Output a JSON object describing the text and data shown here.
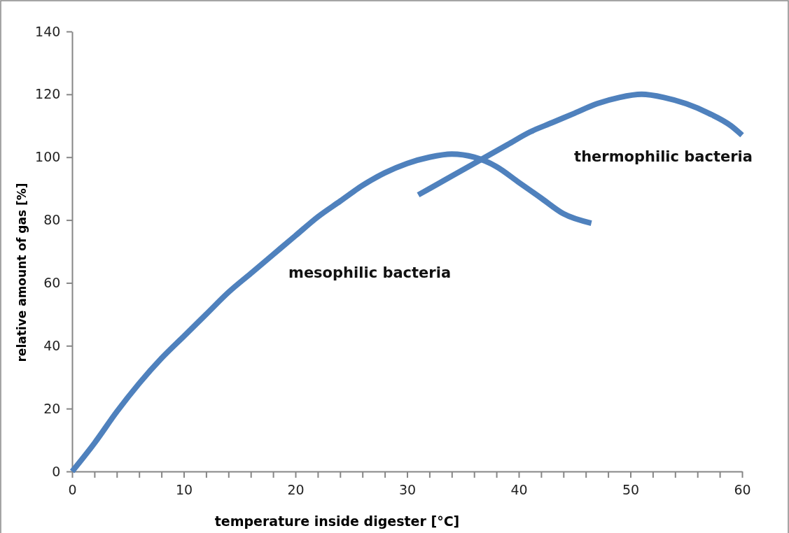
{
  "chart_data": {
    "type": "line",
    "xlabel": "temperature inside digester [°C]",
    "ylabel": "relative amount of gas [%]",
    "xlim": [
      0,
      60
    ],
    "ylim": [
      0,
      140
    ],
    "xticks": [
      0,
      {
        "value": 2,
        "label": null
      },
      {
        "value": 4,
        "label": null
      },
      {
        "value": 6,
        "label": null
      },
      {
        "value": 8,
        "label": null
      },
      10,
      {
        "value": 12,
        "label": null
      },
      {
        "value": 14,
        "label": null
      },
      {
        "value": 16,
        "label": null
      },
      {
        "value": 18,
        "label": null
      },
      20,
      {
        "value": 22,
        "label": null
      },
      {
        "value": 24,
        "label": null
      },
      {
        "value": 26,
        "label": null
      },
      {
        "value": 28,
        "label": null
      },
      30,
      {
        "value": 32,
        "label": null
      },
      {
        "value": 34,
        "label": null
      },
      {
        "value": 36,
        "label": null
      },
      {
        "value": 38,
        "label": null
      },
      40,
      {
        "value": 42,
        "label": null
      },
      {
        "value": 44,
        "label": null
      },
      {
        "value": 46,
        "label": null
      },
      {
        "value": 48,
        "label": null
      },
      50,
      {
        "value": 52,
        "label": null
      },
      {
        "value": 54,
        "label": null
      },
      {
        "value": 56,
        "label": null
      },
      {
        "value": 58,
        "label": null
      },
      60
    ],
    "yticks": [
      0,
      20,
      40,
      60,
      80,
      100,
      120,
      140
    ],
    "grid": false,
    "legend": false,
    "marker": "none",
    "line_style": "solid",
    "series": [
      {
        "name": "mesophilic bacteria",
        "color": "#4f81bd",
        "x": [
          0,
          2,
          4,
          6,
          8,
          10,
          12,
          14,
          16,
          18,
          20,
          22,
          24,
          26,
          28,
          30,
          32,
          34,
          36,
          38,
          40,
          42,
          44,
          46.5
        ],
        "values": [
          0,
          9,
          19,
          28,
          36,
          43,
          50,
          57,
          63,
          69,
          75,
          81,
          86,
          91,
          95,
          98,
          100,
          101,
          100,
          97,
          92,
          87,
          82,
          79
        ]
      },
      {
        "name": "thermophilic bacteria",
        "color": "#4f81bd",
        "x": [
          31,
          33,
          35,
          37,
          39,
          41,
          43,
          45,
          47,
          49,
          51,
          53,
          55,
          57,
          59,
          60
        ],
        "values": [
          88,
          92,
          96,
          100,
          104,
          108,
          111,
          114,
          117,
          119,
          120,
          119,
          117,
          114,
          110,
          107
        ]
      }
    ]
  }
}
